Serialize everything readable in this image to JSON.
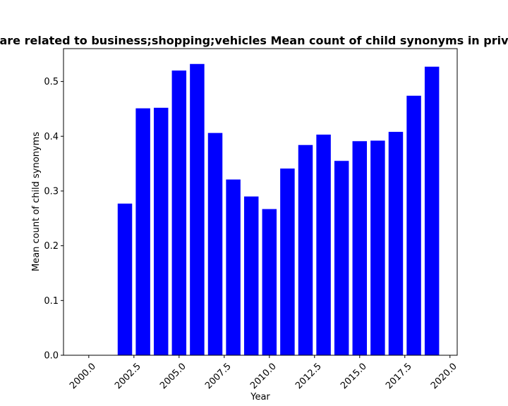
{
  "chart_data": {
    "type": "bar",
    "title": "are related to business;shopping;vehicles Mean count of child synonyms in priv",
    "xlabel": "Year",
    "ylabel": "Mean count of child synonyms",
    "x": [
      2002,
      2003,
      2004,
      2005,
      2006,
      2007,
      2008,
      2009,
      2010,
      2011,
      2012,
      2013,
      2014,
      2015,
      2016,
      2017,
      2018,
      2019
    ],
    "values": [
      0.277,
      0.451,
      0.452,
      0.52,
      0.532,
      0.406,
      0.321,
      0.29,
      0.267,
      0.341,
      0.384,
      0.403,
      0.355,
      0.391,
      0.392,
      0.408,
      0.474,
      0.527
    ],
    "bar_width": 0.8,
    "xlim": [
      1998.6,
      2020.4
    ],
    "ylim": [
      0,
      0.56
    ],
    "xticks": [
      2000.0,
      2002.5,
      2005.0,
      2007.5,
      2010.0,
      2012.5,
      2015.0,
      2017.5,
      2020.0
    ],
    "xtick_labels": [
      "2000.0",
      "2002.5",
      "2005.0",
      "2007.5",
      "2010.0",
      "2012.5",
      "2015.0",
      "2017.5",
      "2020.0"
    ],
    "yticks": [
      0.0,
      0.1,
      0.2,
      0.3,
      0.4,
      0.5
    ],
    "ytick_labels": [
      "0.0",
      "0.1",
      "0.2",
      "0.3",
      "0.4",
      "0.5"
    ],
    "bar_color": "#0000ff",
    "grid": false,
    "legend": "none"
  }
}
